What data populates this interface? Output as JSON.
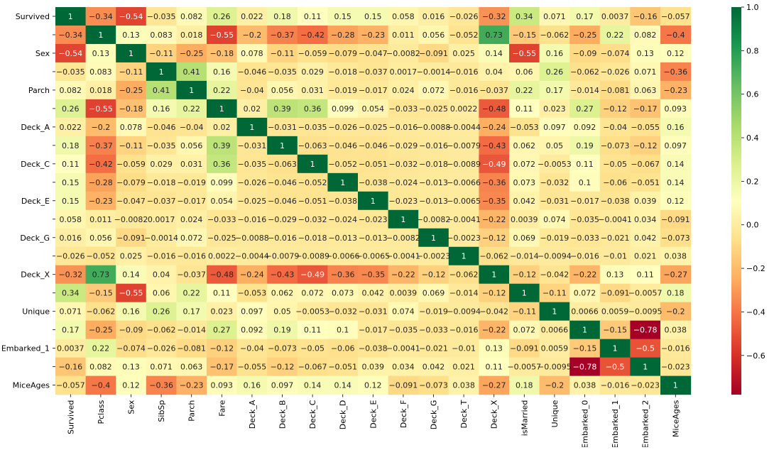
{
  "chart_data": {
    "type": "heatmap",
    "title": "",
    "xlabel": "",
    "ylabel": "",
    "x_labels": [
      "Survived",
      "Pclass",
      "Sex",
      "SibSp",
      "Parch",
      "Fare",
      "Deck_A",
      "Deck_B",
      "Deck_C",
      "Deck_D",
      "Deck_E",
      "Deck_F",
      "Deck_G",
      "Deck_T",
      "Deck_X",
      "isMarried",
      "Unique",
      "Embarked_0",
      "Embarked_1",
      "Embarked_2",
      "MiceAges"
    ],
    "y_labels": [
      "Survived",
      "",
      "Sex",
      "",
      "Parch",
      "",
      "Deck_A",
      "",
      "Deck_C",
      "",
      "Deck_E",
      "",
      "Deck_G",
      "",
      "Deck_X",
      "",
      "Unique",
      "",
      "Embarked_1",
      "",
      "MiceAges"
    ],
    "values": [
      [
        1,
        -0.34,
        -0.54,
        -0.035,
        0.082,
        0.26,
        0.022,
        0.18,
        0.11,
        0.15,
        0.15,
        0.058,
        0.016,
        -0.026,
        -0.32,
        0.34,
        0.071,
        0.17,
        0.0037,
        -0.16,
        -0.057
      ],
      [
        -0.34,
        1,
        0.13,
        0.083,
        0.018,
        -0.55,
        -0.2,
        -0.37,
        -0.42,
        -0.28,
        -0.23,
        0.011,
        0.056,
        -0.052,
        0.73,
        -0.15,
        -0.062,
        -0.25,
        0.22,
        0.082,
        -0.4
      ],
      [
        -0.54,
        0.13,
        1,
        -0.11,
        -0.25,
        -0.18,
        0.078,
        -0.11,
        -0.059,
        -0.079,
        -0.047,
        -0.0082,
        -0.091,
        0.025,
        0.14,
        -0.55,
        0.16,
        -0.09,
        -0.074,
        0.13,
        0.12
      ],
      [
        -0.035,
        0.083,
        -0.11,
        1,
        0.41,
        0.16,
        -0.046,
        -0.035,
        0.029,
        -0.018,
        -0.037,
        0.0017,
        -0.0014,
        -0.016,
        0.04,
        0.06,
        0.26,
        -0.062,
        -0.026,
        0.071,
        -0.36
      ],
      [
        0.082,
        0.018,
        -0.25,
        0.41,
        1,
        0.22,
        -0.04,
        0.056,
        0.031,
        -0.019,
        -0.017,
        0.024,
        0.072,
        -0.016,
        -0.037,
        0.22,
        0.17,
        -0.014,
        -0.081,
        0.063,
        -0.23
      ],
      [
        0.26,
        -0.55,
        -0.18,
        0.16,
        0.22,
        1,
        0.02,
        0.39,
        0.36,
        0.099,
        0.054,
        -0.033,
        -0.025,
        0.0022,
        -0.48,
        0.11,
        0.023,
        0.27,
        -0.12,
        -0.17,
        0.093
      ],
      [
        0.022,
        -0.2,
        0.078,
        -0.046,
        -0.04,
        0.02,
        1,
        -0.031,
        -0.035,
        -0.026,
        -0.025,
        -0.016,
        -0.0088,
        -0.0044,
        -0.24,
        -0.053,
        0.097,
        0.092,
        -0.04,
        -0.055,
        0.16
      ],
      [
        0.18,
        -0.37,
        -0.11,
        -0.035,
        0.056,
        0.39,
        -0.031,
        1,
        -0.063,
        -0.046,
        -0.046,
        -0.029,
        -0.016,
        -0.0079,
        -0.43,
        0.062,
        0.05,
        0.19,
        -0.073,
        -0.12,
        0.097
      ],
      [
        0.11,
        -0.42,
        -0.059,
        0.029,
        0.031,
        0.36,
        -0.035,
        -0.063,
        1,
        -0.052,
        -0.051,
        -0.032,
        -0.018,
        -0.0089,
        -0.49,
        0.072,
        -0.0053,
        0.11,
        -0.05,
        -0.067,
        0.14
      ],
      [
        0.15,
        -0.28,
        -0.079,
        -0.018,
        -0.019,
        0.099,
        -0.026,
        -0.046,
        -0.052,
        1,
        -0.038,
        -0.024,
        -0.013,
        -0.0066,
        -0.36,
        0.073,
        -0.032,
        0.1,
        -0.06,
        -0.051,
        0.14
      ],
      [
        0.15,
        -0.23,
        -0.047,
        -0.037,
        -0.017,
        0.054,
        -0.025,
        -0.046,
        -0.051,
        -0.038,
        1,
        -0.023,
        -0.013,
        -0.0065,
        -0.35,
        0.042,
        -0.031,
        -0.017,
        -0.038,
        0.039,
        0.12
      ],
      [
        0.058,
        0.011,
        -0.0082,
        0.0017,
        0.024,
        -0.033,
        -0.016,
        -0.029,
        -0.032,
        -0.024,
        -0.023,
        1,
        -0.0082,
        -0.0041,
        -0.22,
        0.0039,
        0.074,
        -0.035,
        -0.0041,
        0.034,
        -0.091
      ],
      [
        0.016,
        0.056,
        -0.091,
        -0.0014,
        0.072,
        -0.025,
        -0.0088,
        -0.016,
        -0.018,
        -0.013,
        -0.013,
        -0.0082,
        1,
        -0.0023,
        -0.12,
        0.069,
        -0.019,
        -0.033,
        -0.021,
        0.042,
        -0.073
      ],
      [
        -0.026,
        -0.052,
        0.025,
        -0.016,
        -0.016,
        0.0022,
        -0.0044,
        -0.0079,
        -0.0089,
        -0.0066,
        -0.0065,
        -0.0041,
        -0.0023,
        1,
        -0.062,
        -0.014,
        -0.0094,
        -0.016,
        -0.01,
        0.021,
        0.038
      ],
      [
        -0.32,
        0.73,
        0.14,
        0.04,
        -0.037,
        -0.48,
        -0.24,
        -0.43,
        -0.49,
        -0.36,
        -0.35,
        -0.22,
        -0.12,
        -0.062,
        1,
        -0.12,
        -0.042,
        -0.22,
        0.13,
        0.11,
        -0.27
      ],
      [
        0.34,
        -0.15,
        -0.55,
        0.06,
        0.22,
        0.11,
        -0.053,
        0.062,
        0.072,
        0.073,
        0.042,
        0.0039,
        0.069,
        -0.014,
        -0.12,
        1,
        -0.11,
        0.072,
        -0.091,
        -0.0057,
        0.18
      ],
      [
        0.071,
        -0.062,
        0.16,
        0.26,
        0.17,
        0.023,
        0.097,
        0.05,
        -0.0053,
        -0.032,
        -0.031,
        0.074,
        -0.019,
        -0.0094,
        -0.042,
        -0.11,
        1,
        0.0066,
        0.0059,
        -0.0095,
        -0.2
      ],
      [
        0.17,
        -0.25,
        -0.09,
        -0.062,
        -0.014,
        0.27,
        0.092,
        0.19,
        0.11,
        0.1,
        -0.017,
        -0.035,
        -0.033,
        -0.016,
        -0.22,
        0.072,
        0.0066,
        1,
        -0.15,
        -0.78,
        0.038
      ],
      [
        0.0037,
        0.22,
        -0.074,
        -0.026,
        -0.081,
        -0.12,
        -0.04,
        -0.073,
        -0.05,
        -0.06,
        -0.038,
        -0.0041,
        -0.021,
        -0.01,
        0.13,
        -0.091,
        0.0059,
        -0.15,
        1,
        -0.5,
        -0.016
      ],
      [
        -0.16,
        0.082,
        0.13,
        0.071,
        0.063,
        -0.17,
        -0.055,
        -0.12,
        -0.067,
        -0.051,
        0.039,
        0.034,
        0.042,
        0.021,
        0.11,
        -0.0057,
        -0.0095,
        -0.78,
        -0.5,
        1,
        -0.023
      ],
      [
        -0.057,
        -0.4,
        0.12,
        -0.36,
        -0.23,
        0.093,
        0.16,
        0.097,
        0.14,
        0.14,
        0.12,
        -0.091,
        -0.073,
        0.038,
        -0.27,
        0.18,
        -0.2,
        0.038,
        -0.016,
        -0.023,
        1
      ]
    ],
    "colorscale": "RdYlGn",
    "colorbar": {
      "vmin": -0.78,
      "vmax": 1.0,
      "ticks": [
        -0.6,
        -0.4,
        -0.2,
        0.0,
        0.2,
        0.4,
        0.6,
        0.8,
        1.0
      ],
      "tick_labels": [
        "−0.6",
        "−0.4",
        "−0.2",
        "0.0",
        "0.2",
        "0.4",
        "0.6",
        "0.8",
        "1.0"
      ],
      "placement": "right"
    },
    "annotations": "cell values shown",
    "grid": false
  }
}
